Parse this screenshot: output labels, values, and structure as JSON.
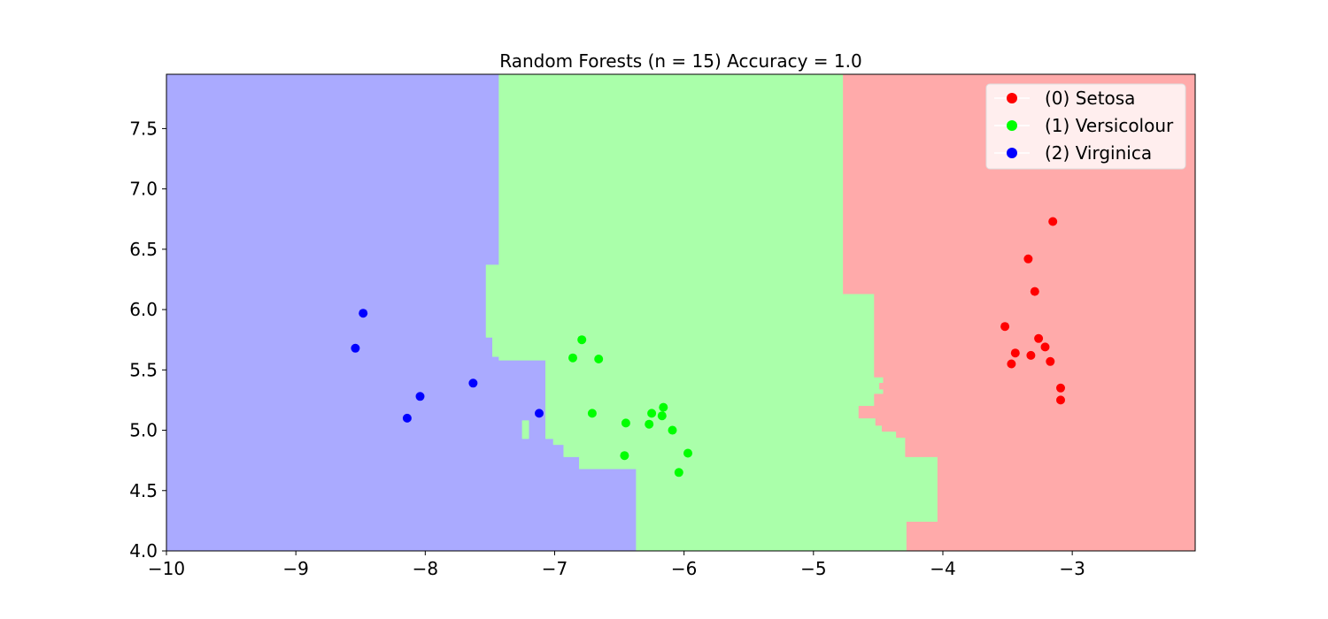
{
  "chart_data": {
    "type": "scatter",
    "title": "Random Forests (n = 15) Accuracy = 1.0",
    "xlabel": "",
    "ylabel": "",
    "xlim": [
      -10,
      -2.05
    ],
    "ylim": [
      4.0,
      7.95
    ],
    "x_ticks": [
      -10,
      -9,
      -8,
      -7,
      -6,
      -5,
      -4,
      -3
    ],
    "x_tick_labels": [
      "−10",
      "−9",
      "−8",
      "−7",
      "−6",
      "−5",
      "−4",
      "−3"
    ],
    "y_ticks": [
      4.0,
      4.5,
      5.0,
      5.5,
      6.0,
      6.5,
      7.0,
      7.5
    ],
    "y_tick_labels": [
      "4.0",
      "4.5",
      "5.0",
      "5.5",
      "6.0",
      "6.5",
      "7.0",
      "7.5"
    ],
    "grid": false,
    "legend_position": "top-right",
    "regions": [
      {
        "class": 2,
        "color": "#aaaaff",
        "polygon": [
          [
            -10,
            4.0
          ],
          [
            -6.37,
            4.0
          ],
          [
            -6.37,
            4.68
          ],
          [
            -6.81,
            4.68
          ],
          [
            -6.81,
            4.78
          ],
          [
            -6.93,
            4.78
          ],
          [
            -6.93,
            4.88
          ],
          [
            -7.01,
            4.88
          ],
          [
            -7.01,
            4.93
          ],
          [
            -7.07,
            4.93
          ],
          [
            -7.07,
            5.58
          ],
          [
            -7.43,
            5.58
          ],
          [
            -7.43,
            5.61
          ],
          [
            -7.48,
            5.61
          ],
          [
            -7.48,
            5.77
          ],
          [
            -7.53,
            5.77
          ],
          [
            -7.53,
            5.76
          ],
          [
            -7.53,
            6.37
          ],
          [
            -7.43,
            6.37
          ],
          [
            -7.43,
            7.95
          ],
          [
            -10,
            7.95
          ]
        ]
      },
      {
        "class": 1,
        "color": "#aaffaa",
        "polygon": [
          [
            -7.43,
            7.95
          ],
          [
            -4.77,
            7.95
          ],
          [
            -4.77,
            6.13
          ],
          [
            -4.53,
            6.13
          ],
          [
            -4.53,
            5.44
          ],
          [
            -4.46,
            5.44
          ],
          [
            -4.46,
            5.39
          ],
          [
            -4.49,
            5.39
          ],
          [
            -4.49,
            5.34
          ],
          [
            -4.46,
            5.34
          ],
          [
            -4.46,
            5.3
          ],
          [
            -4.53,
            5.3
          ],
          [
            -4.53,
            5.2
          ],
          [
            -4.65,
            5.2
          ],
          [
            -4.65,
            5.1
          ],
          [
            -4.52,
            5.1
          ],
          [
            -4.52,
            5.04
          ],
          [
            -4.47,
            5.04
          ],
          [
            -4.47,
            4.99
          ],
          [
            -4.36,
            4.99
          ],
          [
            -4.36,
            4.94
          ],
          [
            -4.29,
            4.94
          ],
          [
            -4.29,
            4.78
          ],
          [
            -4.04,
            4.78
          ],
          [
            -4.04,
            4.24
          ],
          [
            -4.28,
            4.24
          ],
          [
            -4.28,
            4.0
          ],
          [
            -6.37,
            4.0
          ],
          [
            -6.37,
            4.68
          ],
          [
            -6.81,
            4.68
          ],
          [
            -6.81,
            4.78
          ],
          [
            -6.93,
            4.78
          ],
          [
            -6.93,
            4.88
          ],
          [
            -7.01,
            4.88
          ],
          [
            -7.01,
            4.93
          ],
          [
            -7.07,
            4.93
          ],
          [
            -7.07,
            5.58
          ],
          [
            -7.43,
            5.58
          ],
          [
            -7.43,
            5.61
          ],
          [
            -7.48,
            5.61
          ],
          [
            -7.48,
            5.77
          ],
          [
            -7.53,
            5.77
          ],
          [
            -7.53,
            6.37
          ],
          [
            -7.43,
            6.37
          ]
        ]
      },
      {
        "class": 1,
        "color": "#aaffaa",
        "polygon": [
          [
            -7.25,
            4.93
          ],
          [
            -7.2,
            4.93
          ],
          [
            -7.2,
            5.08
          ],
          [
            -7.25,
            5.08
          ]
        ]
      },
      {
        "class": 0,
        "color": "#ffaaaa",
        "polygon": [
          [
            -4.77,
            7.95
          ],
          [
            -2.05,
            7.95
          ],
          [
            -2.05,
            4.0
          ],
          [
            -4.28,
            4.0
          ],
          [
            -4.28,
            4.24
          ],
          [
            -4.04,
            4.24
          ],
          [
            -4.04,
            4.78
          ],
          [
            -4.29,
            4.78
          ],
          [
            -4.29,
            4.94
          ],
          [
            -4.36,
            4.94
          ],
          [
            -4.36,
            4.99
          ],
          [
            -4.47,
            4.99
          ],
          [
            -4.47,
            5.04
          ],
          [
            -4.52,
            5.04
          ],
          [
            -4.52,
            5.1
          ],
          [
            -4.65,
            5.1
          ],
          [
            -4.65,
            5.2
          ],
          [
            -4.53,
            5.2
          ],
          [
            -4.53,
            5.3
          ],
          [
            -4.46,
            5.3
          ],
          [
            -4.46,
            5.34
          ],
          [
            -4.49,
            5.34
          ],
          [
            -4.49,
            5.39
          ],
          [
            -4.46,
            5.39
          ],
          [
            -4.46,
            5.44
          ],
          [
            -4.53,
            5.44
          ],
          [
            -4.53,
            6.13
          ],
          [
            -4.77,
            6.13
          ]
        ]
      }
    ],
    "series": [
      {
        "name": "(0) Setosa",
        "color": "#ff0000",
        "points": [
          [
            -3.15,
            6.73
          ],
          [
            -3.34,
            6.42
          ],
          [
            -3.29,
            6.15
          ],
          [
            -3.52,
            5.86
          ],
          [
            -3.26,
            5.76
          ],
          [
            -3.21,
            5.69
          ],
          [
            -3.44,
            5.64
          ],
          [
            -3.32,
            5.62
          ],
          [
            -3.17,
            5.57
          ],
          [
            -3.47,
            5.55
          ],
          [
            -3.09,
            5.35
          ],
          [
            -3.09,
            5.25
          ]
        ]
      },
      {
        "name": "(1) Versicolour",
        "color": "#00ff00",
        "points": [
          [
            -6.79,
            5.75
          ],
          [
            -6.86,
            5.6
          ],
          [
            -6.66,
            5.59
          ],
          [
            -6.16,
            5.19
          ],
          [
            -6.71,
            5.14
          ],
          [
            -6.25,
            5.14
          ],
          [
            -6.17,
            5.12
          ],
          [
            -6.45,
            5.06
          ],
          [
            -6.27,
            5.05
          ],
          [
            -6.09,
            5.0
          ],
          [
            -5.97,
            4.81
          ],
          [
            -6.46,
            4.79
          ],
          [
            -6.04,
            4.65
          ]
        ]
      },
      {
        "name": "(2) Virginica",
        "color": "#0000ff",
        "points": [
          [
            -8.48,
            5.97
          ],
          [
            -8.54,
            5.68
          ],
          [
            -7.63,
            5.39
          ],
          [
            -8.04,
            5.28
          ],
          [
            -8.14,
            5.1
          ],
          [
            -7.12,
            5.14
          ]
        ]
      }
    ]
  }
}
